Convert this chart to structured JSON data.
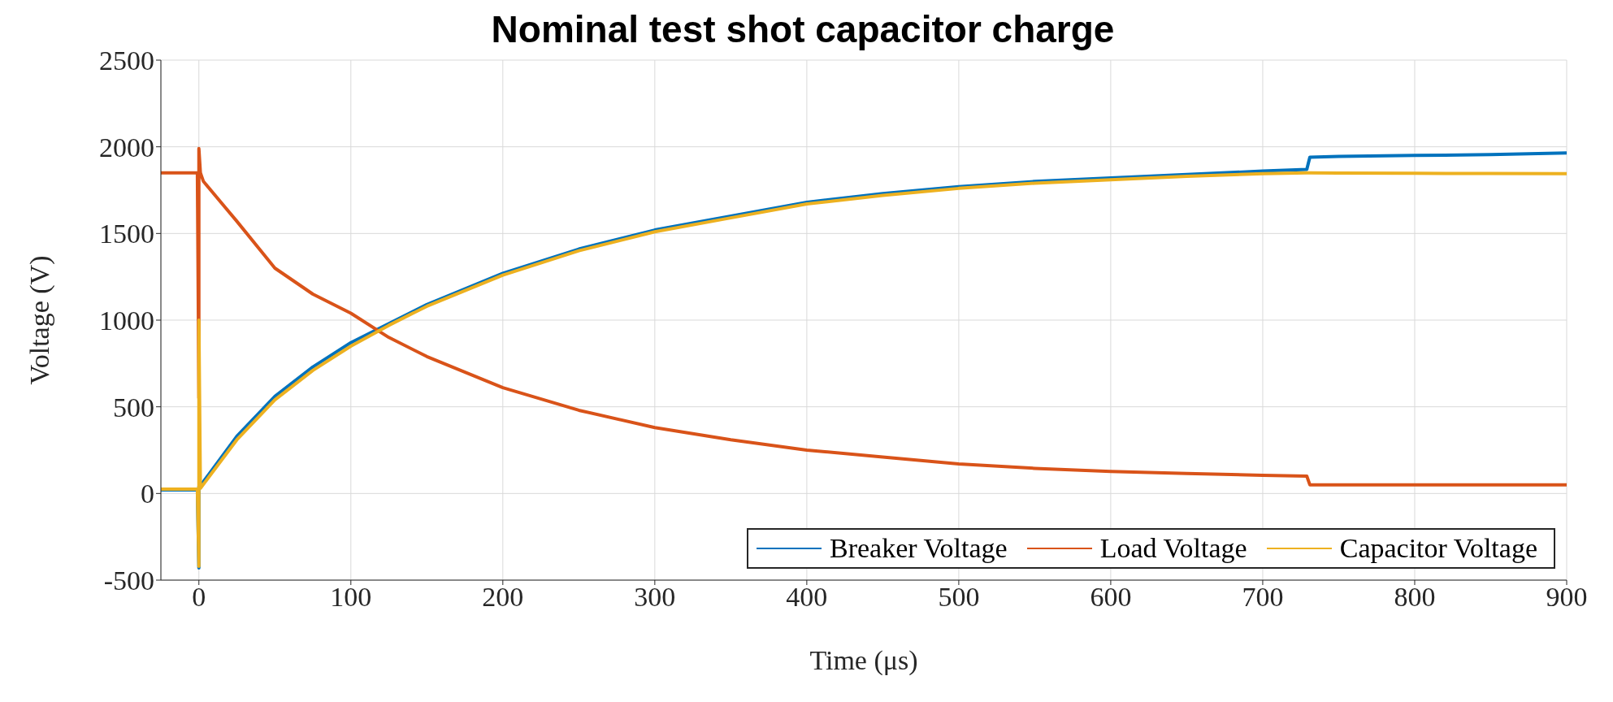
{
  "chart_data": {
    "type": "line",
    "title": "Nominal test shot capacitor charge",
    "xlabel": "Time (μs)",
    "ylabel": "Voltage (V)",
    "xlim": [
      -25,
      900
    ],
    "xticks": [
      0,
      100,
      200,
      300,
      400,
      500,
      600,
      700,
      800,
      900
    ],
    "ylim": [
      -500,
      2500
    ],
    "yticks": [
      -500,
      0,
      500,
      1000,
      1500,
      2000,
      2500
    ],
    "grid": true,
    "legend": "bottom right",
    "line_style": "solid",
    "marker": "none",
    "series": [
      {
        "name": "Breaker Voltage",
        "color": "#0072bd",
        "x": [
          -25,
          -10,
          -1,
          0,
          0,
          1,
          25,
          50,
          75,
          100,
          125,
          150,
          200,
          250,
          300,
          350,
          400,
          450,
          500,
          550,
          600,
          650,
          700,
          729,
          731,
          750,
          800,
          850,
          900
        ],
        "values": [
          20,
          20,
          20,
          -430,
          40,
          45,
          330,
          560,
          730,
          870,
          980,
          1090,
          1270,
          1410,
          1520,
          1600,
          1680,
          1730,
          1770,
          1800,
          1820,
          1840,
          1860,
          1870,
          1940,
          1945,
          1950,
          1955,
          1965
        ]
      },
      {
        "name": "Load Voltage",
        "color": "#d95319",
        "x": [
          -25,
          -10,
          -1,
          0,
          0,
          1,
          3,
          25,
          50,
          75,
          100,
          125,
          150,
          200,
          250,
          300,
          350,
          400,
          450,
          500,
          550,
          600,
          650,
          700,
          729,
          731,
          750,
          800,
          850,
          900
        ],
        "values": [
          1850,
          1850,
          1850,
          550,
          1990,
          1850,
          1800,
          1570,
          1300,
          1150,
          1040,
          900,
          790,
          610,
          480,
          380,
          310,
          250,
          210,
          170,
          145,
          127,
          115,
          105,
          100,
          50,
          50,
          50,
          50,
          50
        ]
      },
      {
        "name": "Capacitor Voltage",
        "color": "#edb120",
        "x": [
          -25,
          -10,
          -1,
          0,
          0,
          1,
          25,
          50,
          75,
          100,
          125,
          150,
          200,
          250,
          300,
          350,
          400,
          450,
          500,
          550,
          600,
          650,
          700,
          729,
          731,
          750,
          800,
          850,
          900
        ],
        "values": [
          25,
          25,
          25,
          -420,
          1000,
          30,
          310,
          540,
          710,
          850,
          970,
          1080,
          1260,
          1400,
          1510,
          1590,
          1670,
          1720,
          1760,
          1790,
          1810,
          1830,
          1845,
          1850,
          1850,
          1848,
          1847,
          1846,
          1845
        ]
      }
    ]
  }
}
